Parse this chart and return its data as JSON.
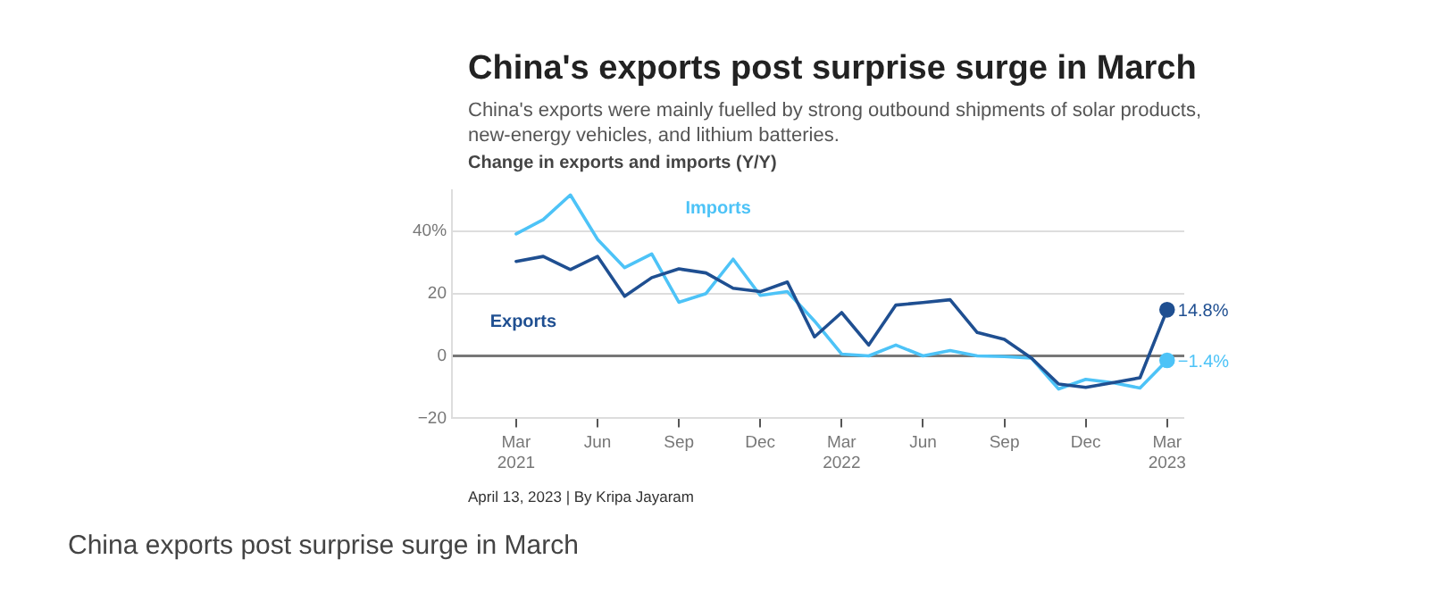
{
  "chart_data": {
    "type": "line",
    "title": "China's exports post surprise surge in March",
    "subtitle": "China's exports were mainly fuelled by strong outbound shipments of solar products, new-energy vehicles, and lithium batteries.",
    "ylabel": "Change in exports and imports (Y/Y)",
    "x": [
      "2021-03",
      "2021-04",
      "2021-05",
      "2021-06",
      "2021-07",
      "2021-08",
      "2021-09",
      "2021-10",
      "2021-11",
      "2021-12",
      "2022-01",
      "2022-02",
      "2022-03",
      "2022-04",
      "2022-05",
      "2022-06",
      "2022-07",
      "2022-08",
      "2022-09",
      "2022-10",
      "2022-11",
      "2022-12",
      "2023-01",
      "2023-02",
      "2023-03"
    ],
    "series": [
      {
        "name": "Exports",
        "color": "#1f4f91",
        "values": [
          30.3,
          31.9,
          27.7,
          31.9,
          19.1,
          25.1,
          27.9,
          26.6,
          21.7,
          20.6,
          23.7,
          6.1,
          13.9,
          3.5,
          16.3,
          17.1,
          18.0,
          7.5,
          5.3,
          -0.7,
          -9.0,
          -10.1,
          -8.6,
          -7.0,
          14.8
        ],
        "value_labels": [
          null,
          null,
          null,
          null,
          null,
          null,
          null,
          null,
          null,
          null,
          null,
          null,
          null,
          null,
          null,
          null,
          null,
          null,
          null,
          null,
          null,
          null,
          null,
          null,
          "14.8%"
        ]
      },
      {
        "name": "Imports",
        "color": "#4dc3f7",
        "values": [
          39.1,
          43.7,
          51.6,
          37.4,
          28.3,
          32.7,
          17.2,
          20.0,
          31.0,
          19.4,
          20.6,
          11.2,
          0.6,
          0.0,
          3.5,
          0.0,
          1.7,
          0.0,
          -0.2,
          -0.7,
          -10.6,
          -7.5,
          -8.6,
          -10.3,
          -1.4
        ],
        "value_labels": [
          null,
          null,
          null,
          null,
          null,
          null,
          null,
          null,
          null,
          null,
          null,
          null,
          null,
          null,
          null,
          null,
          null,
          null,
          null,
          null,
          null,
          null,
          null,
          null,
          "−1.4%"
        ]
      }
    ],
    "xlim": [
      "2020-12-20",
      "2023-03-20"
    ],
    "xticks": [
      {
        "value": "2021-03",
        "label": "Mar 2021"
      },
      {
        "value": "2021-06",
        "label": "Jun"
      },
      {
        "value": "2021-09",
        "label": "Sep"
      },
      {
        "value": "2021-12",
        "label": "Dec"
      },
      {
        "value": "2022-03",
        "label": "Mar 2022"
      },
      {
        "value": "2022-06",
        "label": "Jun"
      },
      {
        "value": "2022-09",
        "label": "Sep"
      },
      {
        "value": "2022-12",
        "label": "Dec"
      },
      {
        "value": "2023-03",
        "label": "Mar 2023"
      }
    ],
    "ylim": [
      -20,
      53
    ],
    "yticks": [
      -20,
      0,
      20,
      {
        "value": 40,
        "label": "40%"
      }
    ],
    "grid": "y",
    "annotations": [
      "April 13, 2023 | By Kripa Jayaram",
      "China exports post surprise surge in March"
    ]
  }
}
